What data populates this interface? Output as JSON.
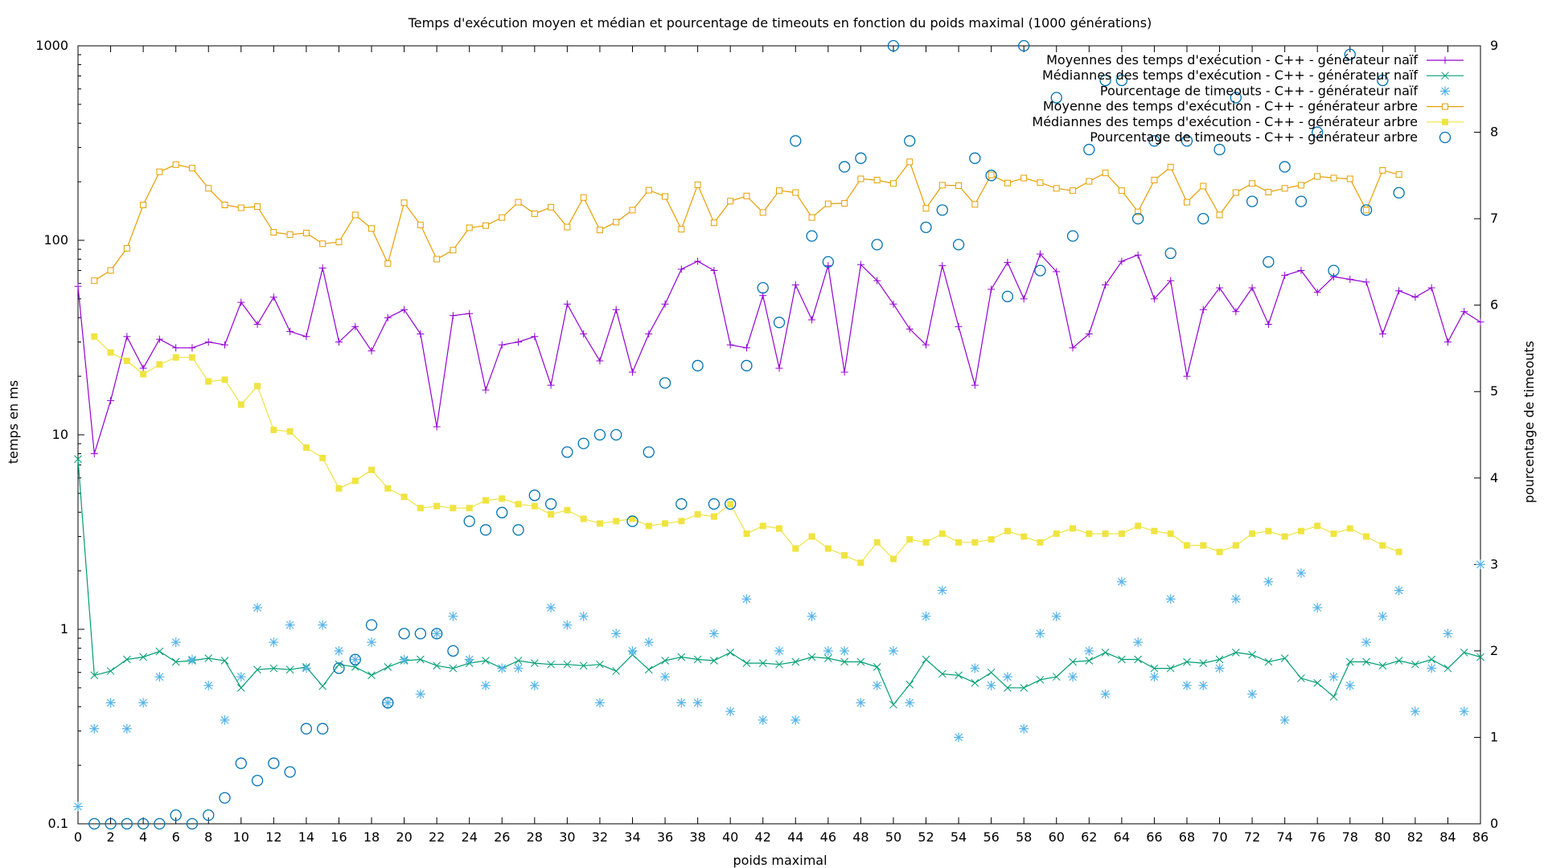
{
  "chart_data": {
    "type": "line",
    "title": "Temps d'exécution moyen et médian et pourcentage de timeouts en fonction du poids maximal (1000 générations)",
    "xlabel": "poids maximal",
    "ylabel": "temps en ms",
    "y2label": "pourcentage de timeouts",
    "xlim": [
      0,
      86
    ],
    "ylim": [
      0.1,
      1000
    ],
    "yscale": "log",
    "y2lim": [
      0,
      9
    ],
    "x_ticks": [
      "0",
      "2",
      "4",
      "6",
      "8",
      "10",
      "12",
      "14",
      "16",
      "18",
      "20",
      "22",
      "24",
      "26",
      "28",
      "30",
      "32",
      "34",
      "36",
      "38",
      "40",
      "42",
      "44",
      "46",
      "48",
      "50",
      "52",
      "54",
      "56",
      "58",
      "60",
      "62",
      "64",
      "66",
      "68",
      "70",
      "72",
      "74",
      "76",
      "78",
      "80",
      "82",
      "84",
      "86"
    ],
    "y_ticks": [
      "0.1",
      "1",
      "10",
      "100",
      "1000"
    ],
    "y2_ticks": [
      "0",
      "1",
      "2",
      "3",
      "4",
      "5",
      "6",
      "7",
      "8",
      "9"
    ],
    "grid": false,
    "legend_position": "top-right",
    "series": [
      {
        "name": "Moyennes des temps d'exécution - C++ - générateur naïf",
        "axis": "y",
        "color": "#9400d3",
        "style": "line-plus",
        "x0": 0,
        "values": [
          58,
          8,
          15,
          32,
          22,
          31,
          28,
          28,
          30,
          29,
          48,
          37,
          51,
          34,
          32,
          72,
          30,
          36,
          27,
          40,
          44,
          33,
          11,
          41,
          42,
          17,
          29,
          30,
          32,
          18,
          47,
          33,
          24,
          44,
          21,
          33,
          47,
          71,
          78,
          70,
          29,
          28,
          52,
          22,
          59,
          39,
          74,
          21,
          75,
          62,
          47,
          35,
          29,
          74,
          36,
          18,
          56,
          77,
          50,
          85,
          69,
          28,
          33,
          59,
          78,
          84,
          50,
          62,
          20,
          44,
          57,
          43,
          57,
          37,
          66,
          70,
          54,
          65,
          63,
          61,
          33,
          55,
          51,
          57,
          30,
          43,
          38
        ]
      },
      {
        "name": "Médiannes des temps d'exécution - C++ - générateur naïf",
        "axis": "y",
        "color": "#009e73",
        "style": "line-x",
        "x0": 0,
        "values": [
          7.5,
          0.58,
          0.61,
          0.7,
          0.72,
          0.77,
          0.68,
          0.69,
          0.71,
          0.69,
          0.5,
          0.62,
          0.63,
          0.62,
          0.64,
          0.51,
          0.66,
          0.64,
          0.58,
          0.64,
          0.69,
          0.7,
          0.65,
          0.63,
          0.67,
          0.69,
          0.63,
          0.69,
          0.67,
          0.66,
          0.66,
          0.65,
          0.66,
          0.61,
          0.74,
          0.62,
          0.69,
          0.72,
          0.7,
          0.69,
          0.76,
          0.67,
          0.67,
          0.66,
          0.68,
          0.72,
          0.71,
          0.68,
          0.68,
          0.64,
          0.41,
          0.52,
          0.7,
          0.59,
          0.58,
          0.53,
          0.6,
          0.5,
          0.5,
          0.55,
          0.57,
          0.68,
          0.69,
          0.76,
          0.7,
          0.7,
          0.63,
          0.63,
          0.68,
          0.67,
          0.7,
          0.76,
          0.74,
          0.68,
          0.71,
          0.56,
          0.53,
          0.45,
          0.68,
          0.68,
          0.65,
          0.69,
          0.66,
          0.7,
          0.63,
          0.76,
          0.72
        ]
      },
      {
        "name": "Pourcentage de timeouts - C++ - générateur naïf",
        "axis": "y2",
        "color": "#56b4e9",
        "style": "points-star",
        "x0": 0,
        "values": [
          0.2,
          1.1,
          1.4,
          1.1,
          1.4,
          1.7,
          2.1,
          1.9,
          1.6,
          1.2,
          1.7,
          2.5,
          2.1,
          2.3,
          1.8,
          2.3,
          2,
          1.9,
          2.1,
          1.4,
          1.9,
          1.5,
          2.2,
          2.4,
          1.9,
          1.6,
          1.8,
          1.8,
          1.6,
          2.5,
          2.3,
          2.4,
          1.4,
          2.2,
          2,
          2.1,
          1.7,
          1.4,
          1.4,
          2.2,
          1.3,
          2.6,
          1.2,
          2,
          1.2,
          2.4,
          2,
          2,
          1.4,
          1.6,
          2,
          1.4,
          2.4,
          2.7,
          1,
          1.8,
          1.6,
          1.7,
          1.1,
          2.2,
          2.4,
          1.7,
          2,
          1.5,
          2.8,
          2.1,
          1.7,
          2.6,
          1.6,
          1.6,
          1.8,
          2.6,
          1.5,
          2.8,
          1.2,
          2.9,
          2.5,
          1.7,
          1.6,
          2.1,
          2.4,
          2.7,
          1.3,
          1.8,
          2.2,
          1.3,
          3
        ]
      },
      {
        "name": "Moyenne des temps d'exécution - C++ - générateur arbre",
        "axis": "y",
        "color": "#e69f00",
        "style": "line-square-open",
        "x0": 1,
        "values": [
          62,
          70,
          91,
          152,
          225,
          245,
          235,
          185,
          152,
          147,
          149,
          110,
          107,
          109,
          96,
          98,
          135,
          115,
          76,
          156,
          120,
          80,
          89,
          116,
          119,
          131,
          157,
          137,
          148,
          117,
          166,
          113,
          124,
          143,
          181,
          168,
          114,
          193,
          123,
          159,
          169,
          139,
          180,
          176,
          131,
          154,
          155,
          207,
          204,
          196,
          253,
          146,
          192,
          191,
          153,
          217,
          197,
          209,
          198,
          185,
          180,
          201,
          222,
          180,
          140,
          204,
          238,
          157,
          190,
          135,
          176,
          196,
          177,
          185,
          192,
          213,
          209,
          207,
          143,
          229,
          218
        ]
      },
      {
        "name": "Médiannes des temps d'exécution - C++ - générateur arbre",
        "axis": "y",
        "color": "#f0e442",
        "style": "line-square-filled",
        "x0": 1,
        "values": [
          32,
          26.5,
          24,
          20.5,
          23,
          25,
          25,
          18.8,
          19.2,
          14.3,
          17.8,
          10.6,
          10.4,
          8.6,
          7.6,
          5.3,
          5.8,
          6.6,
          5.3,
          4.8,
          4.2,
          4.3,
          4.2,
          4.2,
          4.6,
          4.7,
          4.4,
          4.3,
          3.9,
          4.1,
          3.7,
          3.5,
          3.6,
          3.7,
          3.4,
          3.5,
          3.6,
          3.9,
          3.8,
          4.4,
          3.1,
          3.4,
          3.3,
          2.6,
          3,
          2.6,
          2.4,
          2.2,
          2.8,
          2.3,
          2.9,
          2.8,
          3.1,
          2.8,
          2.8,
          2.9,
          3.2,
          3,
          2.8,
          3.1,
          3.3,
          3.1,
          3.1,
          3.1,
          3.4,
          3.2,
          3.1,
          2.7,
          2.7,
          2.5,
          2.7,
          3.1,
          3.2,
          3,
          3.2,
          3.4,
          3.1,
          3.3,
          3,
          2.7,
          2.5
        ]
      },
      {
        "name": "Pourcentage de timeouts - C++ - générateur arbre",
        "axis": "y2",
        "color": "#0072b2",
        "style": "points-circle",
        "x0": 0,
        "values": [
          null,
          0,
          0,
          0,
          0,
          0,
          0.1,
          0,
          0.1,
          0.3,
          0.7,
          0.5,
          0.7,
          0.6,
          1.1,
          1.1,
          1.8,
          1.9,
          2.3,
          1.4,
          2.2,
          2.2,
          2.2,
          2,
          3.5,
          3.4,
          3.6,
          3.4,
          3.8,
          3.7,
          4.3,
          4.4,
          4.5,
          4.5,
          3.5,
          4.3,
          5.1,
          3.7,
          5.3,
          3.7,
          3.7,
          5.3,
          6.2,
          5.8,
          7.9,
          6.8,
          6.5,
          7.6,
          7.7,
          6.7,
          9,
          7.9,
          6.9,
          7.1,
          6.7,
          7.7,
          7.5,
          6.1,
          9,
          6.4,
          8.4,
          6.8,
          7.8,
          8.6,
          8.6,
          7,
          7.9,
          6.6,
          7.9,
          7,
          7.8,
          8.4,
          7.2,
          6.5,
          7.6,
          7.2,
          8,
          6.4,
          8.9,
          7.1,
          8.6,
          7.3
        ]
      }
    ]
  }
}
